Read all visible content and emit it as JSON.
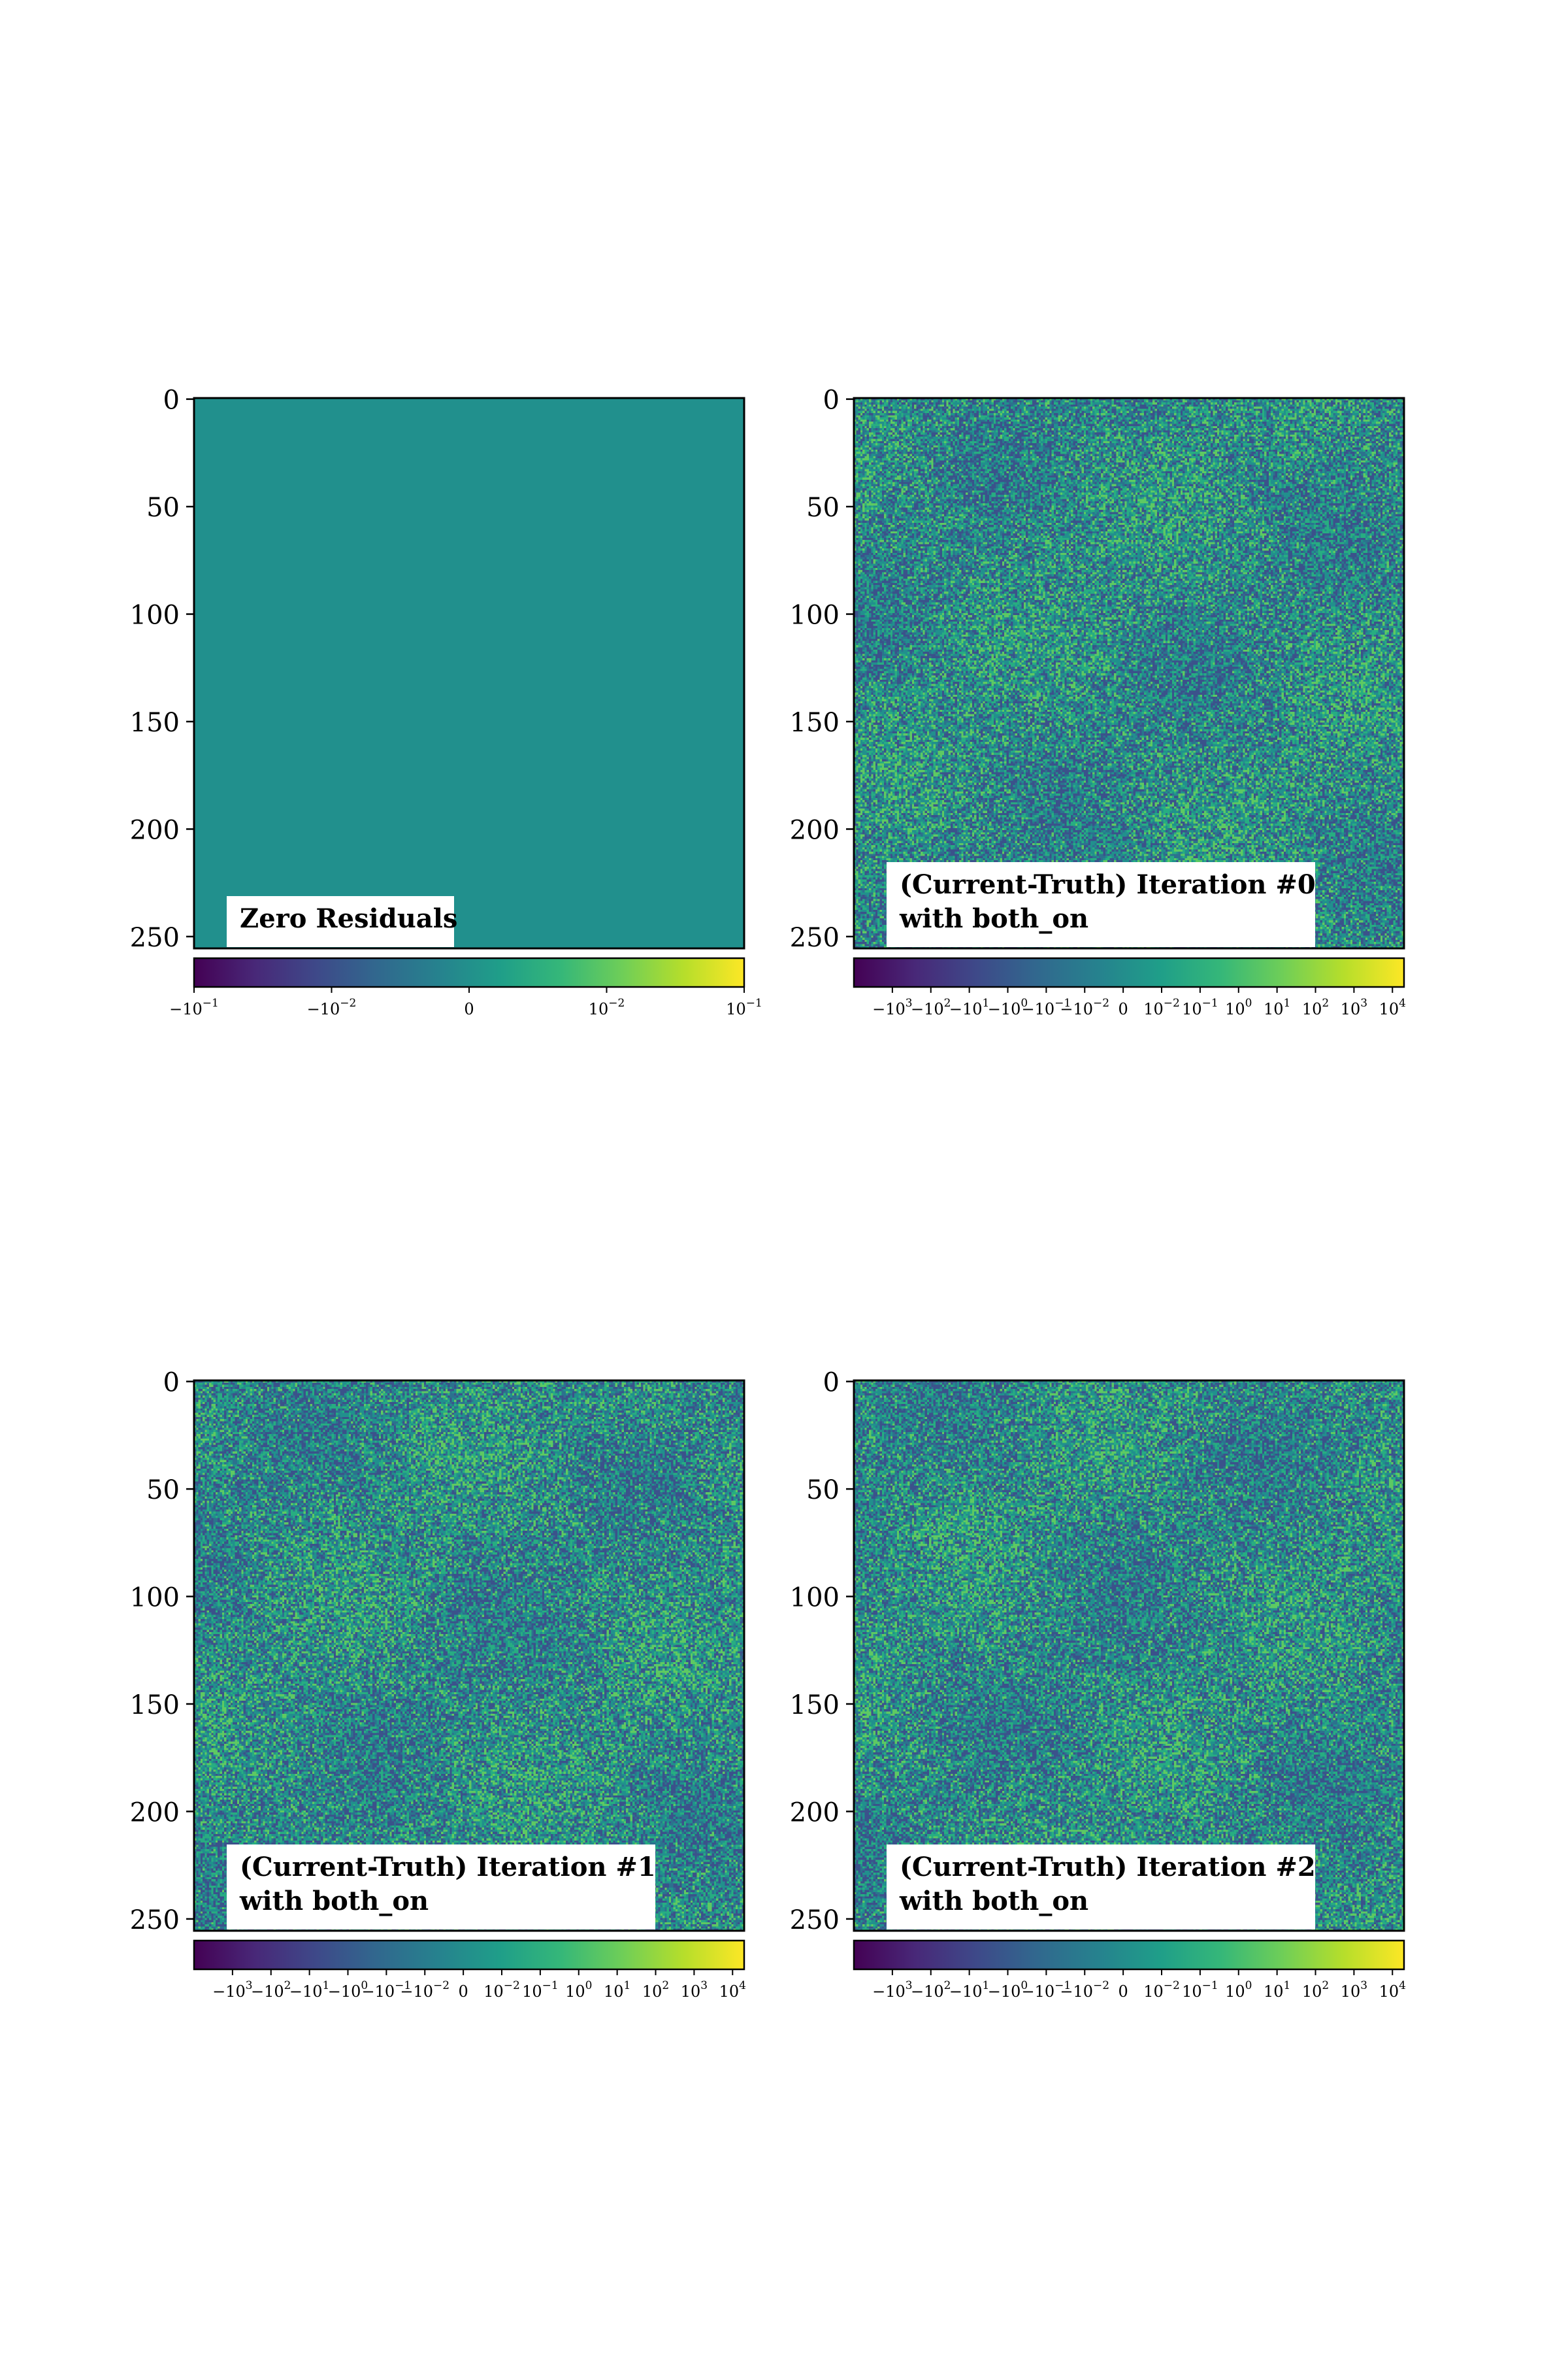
{
  "chart_data": [
    {
      "type": "heatmap",
      "label": "Zero Residuals",
      "yticks": [
        "0",
        "50",
        "100",
        "150",
        "200",
        "250"
      ],
      "ytick_values": [
        0,
        50,
        100,
        150,
        200,
        250
      ],
      "grid_size": [
        256,
        256
      ],
      "field": "uniform",
      "value": 0,
      "colormap": "viridis",
      "colorbar": {
        "scale": "symlog",
        "range": [
          -0.1,
          0.1
        ],
        "ticks": [
          {
            "value": -0.1,
            "base": "−10",
            "exp": "−1"
          },
          {
            "value": -0.01,
            "base": "−10",
            "exp": "−2"
          },
          {
            "value": 0,
            "base": "0",
            "exp": ""
          },
          {
            "value": 0.01,
            "base": "10",
            "exp": "−2"
          },
          {
            "value": 0.1,
            "base": "10",
            "exp": "−1"
          }
        ]
      }
    },
    {
      "type": "heatmap",
      "label": "(Current-Truth) Iteration #0 with both_on",
      "label_lines": [
        "(Current-Truth) Iteration #0",
        "with both_on"
      ],
      "yticks": [
        "0",
        "50",
        "100",
        "150",
        "200",
        "250"
      ],
      "ytick_values": [
        0,
        50,
        100,
        150,
        200,
        250
      ],
      "grid_size": [
        256,
        256
      ],
      "field": "noise",
      "colormap": "viridis",
      "colorbar": {
        "scale": "symlog",
        "range": [
          -10000,
          20000
        ],
        "ticks": [
          {
            "value": -1000,
            "base": "−10",
            "exp": "3"
          },
          {
            "value": -100,
            "base": "−10",
            "exp": "2"
          },
          {
            "value": -10,
            "base": "−10",
            "exp": "1"
          },
          {
            "value": -1,
            "base": "−10",
            "exp": "0"
          },
          {
            "value": -0.1,
            "base": "−10",
            "exp": "−1"
          },
          {
            "value": -0.01,
            "base": "−10",
            "exp": "−2"
          },
          {
            "value": 0,
            "base": "0",
            "exp": ""
          },
          {
            "value": 0.01,
            "base": "10",
            "exp": "−2"
          },
          {
            "value": 0.1,
            "base": "10",
            "exp": "−1"
          },
          {
            "value": 1,
            "base": "10",
            "exp": "0"
          },
          {
            "value": 10,
            "base": "10",
            "exp": "1"
          },
          {
            "value": 100,
            "base": "10",
            "exp": "2"
          },
          {
            "value": 1000,
            "base": "10",
            "exp": "3"
          },
          {
            "value": 10000,
            "base": "10",
            "exp": "4"
          }
        ]
      }
    },
    {
      "type": "heatmap",
      "label": "(Current-Truth) Iteration #1 with both_on",
      "label_lines": [
        "(Current-Truth) Iteration #1",
        "with both_on"
      ],
      "yticks": [
        "0",
        "50",
        "100",
        "150",
        "200",
        "250"
      ],
      "ytick_values": [
        0,
        50,
        100,
        150,
        200,
        250
      ],
      "grid_size": [
        256,
        256
      ],
      "field": "noise",
      "colormap": "viridis",
      "colorbar": {
        "scale": "symlog",
        "range": [
          -10000,
          20000
        ],
        "ticks": [
          {
            "value": -1000,
            "base": "−10",
            "exp": "3"
          },
          {
            "value": -100,
            "base": "−10",
            "exp": "2"
          },
          {
            "value": -10,
            "base": "−10",
            "exp": "1"
          },
          {
            "value": -1,
            "base": "−10",
            "exp": "0"
          },
          {
            "value": -0.1,
            "base": "−10",
            "exp": "−1"
          },
          {
            "value": -0.01,
            "base": "−10",
            "exp": "−2"
          },
          {
            "value": 0,
            "base": "0",
            "exp": ""
          },
          {
            "value": 0.01,
            "base": "10",
            "exp": "−2"
          },
          {
            "value": 0.1,
            "base": "10",
            "exp": "−1"
          },
          {
            "value": 1,
            "base": "10",
            "exp": "0"
          },
          {
            "value": 10,
            "base": "10",
            "exp": "1"
          },
          {
            "value": 100,
            "base": "10",
            "exp": "2"
          },
          {
            "value": 1000,
            "base": "10",
            "exp": "3"
          },
          {
            "value": 10000,
            "base": "10",
            "exp": "4"
          }
        ]
      }
    },
    {
      "type": "heatmap",
      "label": "(Current-Truth) Iteration #2 with both_on",
      "label_lines": [
        "(Current-Truth) Iteration #2",
        "with both_on"
      ],
      "yticks": [
        "0",
        "50",
        "100",
        "150",
        "200",
        "250"
      ],
      "ytick_values": [
        0,
        50,
        100,
        150,
        200,
        250
      ],
      "grid_size": [
        256,
        256
      ],
      "field": "noise",
      "colormap": "viridis",
      "colorbar": {
        "scale": "symlog",
        "range": [
          -10000,
          20000
        ],
        "ticks": [
          {
            "value": -1000,
            "base": "−10",
            "exp": "3"
          },
          {
            "value": -100,
            "base": "−10",
            "exp": "2"
          },
          {
            "value": -10,
            "base": "−10",
            "exp": "1"
          },
          {
            "value": -1,
            "base": "−10",
            "exp": "0"
          },
          {
            "value": -0.1,
            "base": "−10",
            "exp": "−1"
          },
          {
            "value": -0.01,
            "base": "−10",
            "exp": "−2"
          },
          {
            "value": 0,
            "base": "0",
            "exp": ""
          },
          {
            "value": 0.01,
            "base": "10",
            "exp": "−2"
          },
          {
            "value": 0.1,
            "base": "10",
            "exp": "−1"
          },
          {
            "value": 1,
            "base": "10",
            "exp": "0"
          },
          {
            "value": 10,
            "base": "10",
            "exp": "1"
          },
          {
            "value": 100,
            "base": "10",
            "exp": "2"
          },
          {
            "value": 1000,
            "base": "10",
            "exp": "3"
          },
          {
            "value": 10000,
            "base": "10",
            "exp": "4"
          }
        ]
      }
    }
  ],
  "colors": {
    "uniform_fill": "#21908d",
    "viridis": [
      "#440154",
      "#482878",
      "#3e4989",
      "#31688e",
      "#26828e",
      "#1f9e89",
      "#35b779",
      "#6ece58",
      "#b5de2b",
      "#fde725"
    ],
    "noise_palette": [
      "#3b528b",
      "#2c728e",
      "#21908d",
      "#27ad81",
      "#5ec962"
    ],
    "axis": "#000000",
    "label_box": "#ffffff"
  }
}
